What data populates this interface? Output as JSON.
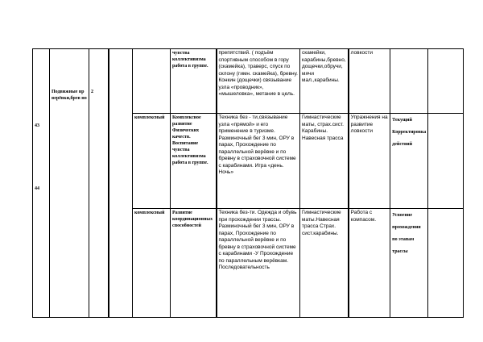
{
  "lesson": {
    "numbers": [
      "43",
      "44"
    ],
    "topic": "Подвижные вр верёвки,брев но",
    "hours": "2"
  },
  "rows": [
    {
      "type": "",
      "goal": "чувства коллективизма работа в группе.",
      "content": "препятствий. ( подъём спортивным способом в гору (скамейка), траверс, спуск по склону (гимн. скамейка), бревну. Конкин (дощечки) связывание узла «проводник», «мышеловка», метание в цель.",
      "equipment": "скамейки, карабины,бревно, дощечки,обручи, мячи мал.,карабины.",
      "skills": "ловкости",
      "control": "",
      "extra": ""
    },
    {
      "type": "комплексный",
      "goal": "Комплексное развитие Физических качеств. Воспитание чувства коллективизма работа в группе.",
      "content": "Техника без - ти,связывание узла «прямой» и его применение в туризме. Разминочный бег 3 мин, ОРУ в парах, Прохождение по параллельной верёвке и по бревну в страховочной системе с карабинами. Игра «день. Ночь»",
      "equipment": "Гимнастические маты, страх.сист. Карабины. Навесная трасса",
      "skills": "Упражнения на развитие ловкости",
      "control": "Текущий Корректировка действий",
      "extra": ""
    },
    {
      "type": "комплексный",
      "goal": "Развитие координационных способностей",
      "content": "Техника без-ти. Одежда и обувь при прохождении трассы. Разминочный бег 3 мин, ОРУ в парах, Прохождение по параллельной верёвке и по бревну в страховочной системе с карабинами -У Прохождение по параллельным верёвкам. Последовательность",
      "equipment": "Гимнастические маты.Навесная трасса Страх. сист.карабины.",
      "skills": "Работа с компасом.",
      "control": "Усвоение прохождения по этапам трассы",
      "extra": ""
    }
  ]
}
